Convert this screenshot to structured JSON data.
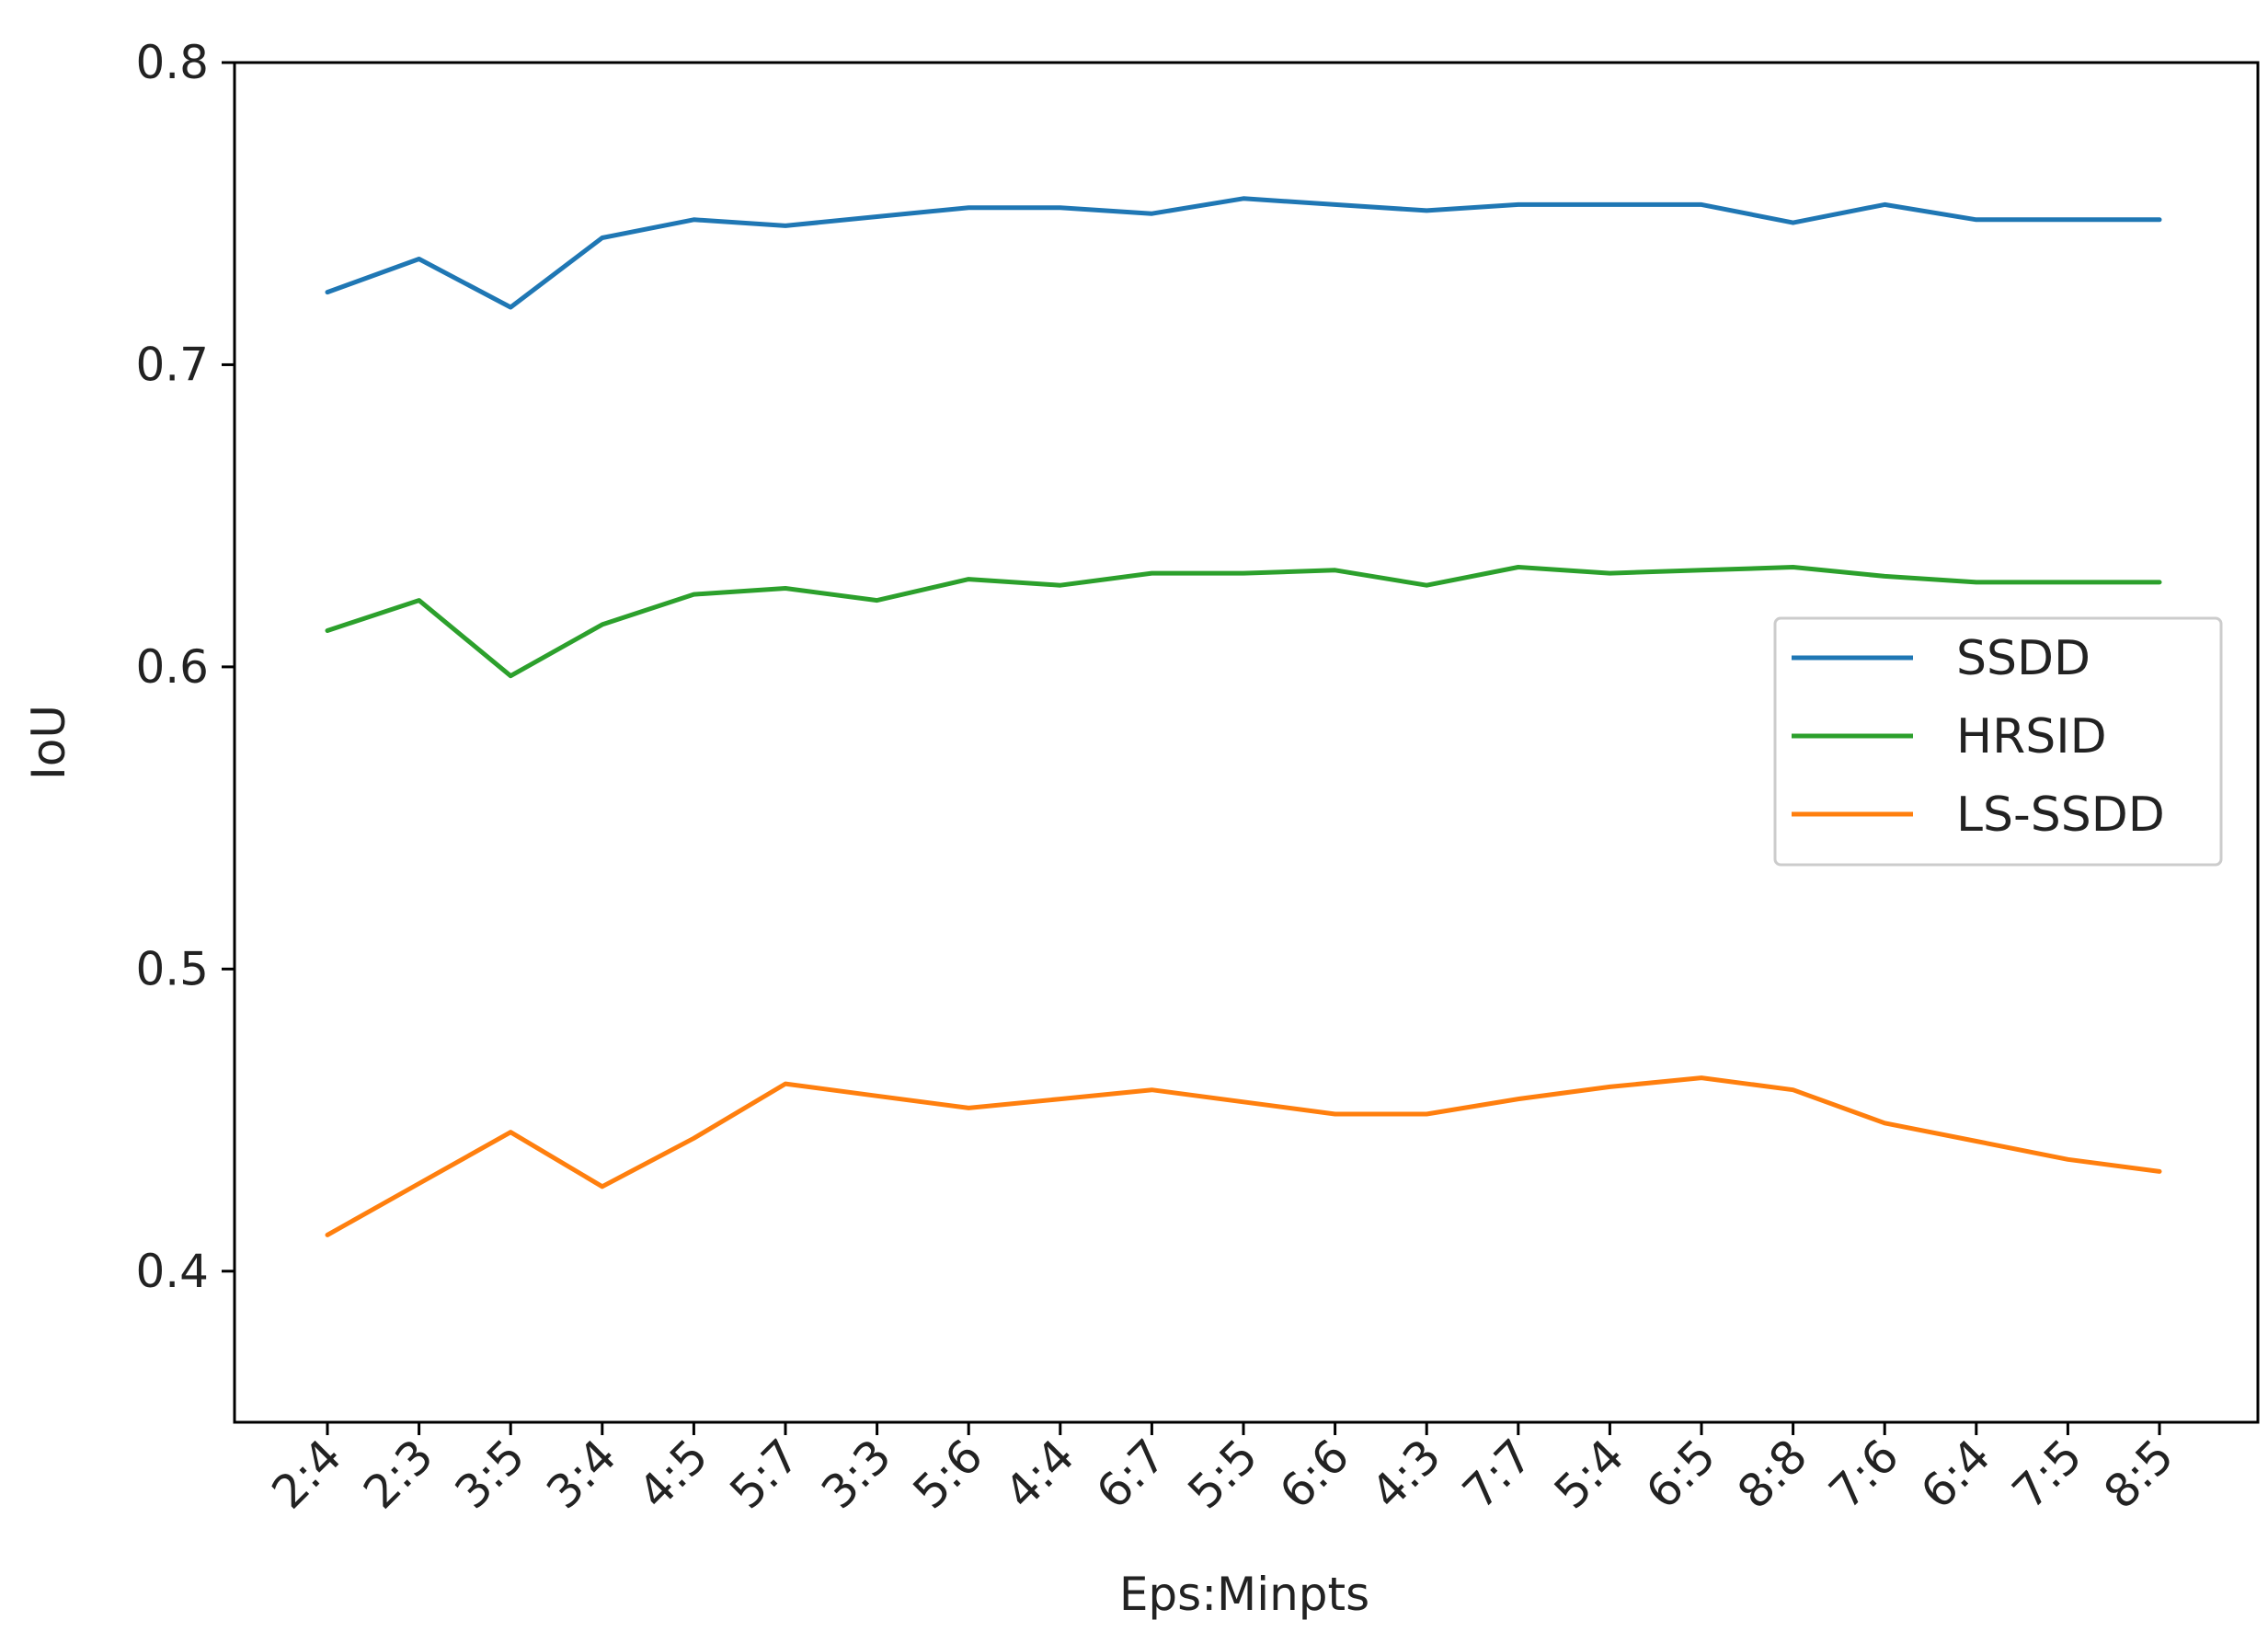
{
  "chart_data": {
    "type": "line",
    "title": "",
    "xlabel": "Eps:Minpts",
    "ylabel": "IoU",
    "categories": [
      "2:4",
      "2:3",
      "3:5",
      "3:4",
      "4:5",
      "5:7",
      "3:3",
      "5:6",
      "4:4",
      "6:7",
      "5:5",
      "6:6",
      "4:3",
      "7:7",
      "5:4",
      "6:5",
      "8:8",
      "7:6",
      "6:4",
      "7:5",
      "8:5"
    ],
    "ylim": [
      0.35,
      0.8
    ],
    "yticks": [
      "0.4",
      "0.5",
      "0.6",
      "0.7",
      "0.8"
    ],
    "grid": false,
    "legend_position": "center-right",
    "series": [
      {
        "name": "SSDD",
        "color": "#1f77b4",
        "values": [
          0.724,
          0.735,
          0.719,
          0.742,
          0.748,
          0.746,
          0.749,
          0.752,
          0.752,
          0.75,
          0.755,
          0.753,
          0.751,
          0.753,
          0.753,
          0.753,
          0.747,
          0.753,
          0.748,
          0.748,
          0.748
        ]
      },
      {
        "name": "HRSID",
        "color": "#2ca02c",
        "values": [
          0.612,
          0.622,
          0.597,
          0.614,
          0.624,
          0.626,
          0.622,
          0.629,
          0.627,
          0.631,
          0.631,
          0.632,
          0.627,
          0.633,
          0.631,
          0.632,
          0.633,
          0.63,
          0.628,
          0.628,
          0.628
        ]
      },
      {
        "name": "LS-SSDD",
        "color": "#ff7f0e",
        "values": [
          0.412,
          0.429,
          0.446,
          0.428,
          0.444,
          0.462,
          0.458,
          0.454,
          0.457,
          0.46,
          0.456,
          0.452,
          0.452,
          0.457,
          0.461,
          0.464,
          0.46,
          0.449,
          0.443,
          0.437,
          0.433
        ]
      }
    ]
  }
}
